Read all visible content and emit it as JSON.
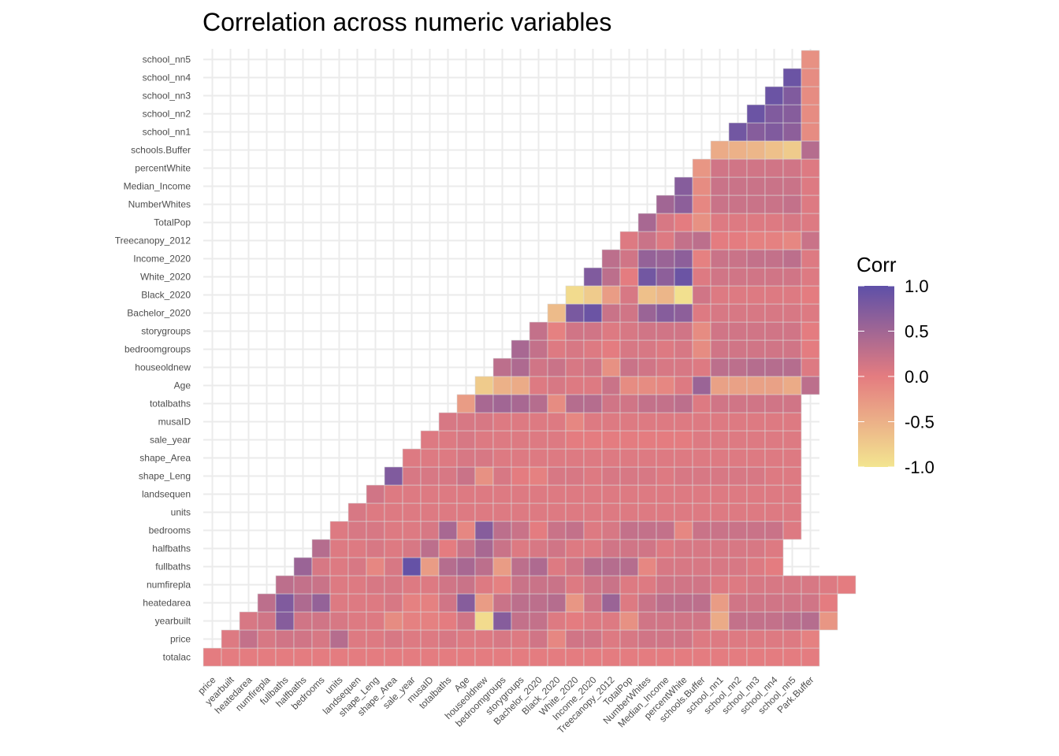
{
  "title": "Correlation across numeric variables",
  "chart_data": {
    "type": "heatmap",
    "title": "Correlation across numeric variables",
    "xlabel": "",
    "ylabel": "",
    "x_labels": [
      "price",
      "yearbuilt",
      "heatedarea",
      "numfirepla",
      "fullbaths",
      "halfbaths",
      "bedrooms",
      "units",
      "landsequen",
      "shape_Leng",
      "shape_Area",
      "sale_year",
      "musaID",
      "totalbaths",
      "Age",
      "houseoldnew",
      "bedroomgroups",
      "storygroups",
      "Bachelor_2020",
      "Black_2020",
      "White_2020",
      "Income_2020",
      "Treecanopy_2012",
      "TotalPop",
      "NumberWhites",
      "Median_Income",
      "percentWhite",
      "schools.Buffer",
      "school_nn1",
      "school_nn2",
      "school_nn3",
      "school_nn4",
      "school_nn5",
      "Park.Buffer"
    ],
    "y_labels": [
      "totalac",
      "price",
      "yearbuilt",
      "heatedarea",
      "numfirepla",
      "fullbaths",
      "halfbaths",
      "bedrooms",
      "units",
      "landsequen",
      "shape_Leng",
      "shape_Area",
      "sale_year",
      "musaID",
      "totalbaths",
      "Age",
      "houseoldnew",
      "bedroomgroups",
      "storygroups",
      "Bachelor_2020",
      "Black_2020",
      "White_2020",
      "Income_2020",
      "Treecanopy_2012",
      "TotalPop",
      "NumberWhites",
      "Median_Income",
      "percentWhite",
      "schools.Buffer",
      "school_nn1",
      "school_nn2",
      "school_nn3",
      "school_nn4",
      "school_nn5"
    ],
    "value_range": [
      -1,
      1
    ],
    "values": [
      [
        0,
        0,
        0,
        0,
        0,
        0,
        0,
        0,
        0,
        0,
        0,
        0,
        0,
        0,
        0,
        0,
        0,
        0,
        0,
        0,
        0,
        0,
        0,
        0,
        0,
        0,
        0,
        0,
        0,
        0,
        0,
        0,
        0,
        0
      ],
      [
        0.05,
        0.25,
        0.1,
        0.15,
        0.15,
        0.1,
        0.35,
        0.05,
        0.05,
        0.1,
        0.05,
        0.05,
        0.1,
        0.05,
        0.05,
        0.1,
        0.05,
        0.15,
        -0.1,
        0.15,
        0.15,
        0.05,
        0.1,
        0.15,
        0.15,
        0.15,
        0.05,
        0.05,
        0.05,
        0.05,
        0.05,
        0.05,
        -0.05
      ],
      [
        0.1,
        0.15,
        0.7,
        0.15,
        0.15,
        0.1,
        0.05,
        0.05,
        -0.15,
        -0.05,
        -0.05,
        0,
        0.15,
        -0.9,
        0.7,
        0.25,
        0.25,
        0.05,
        0,
        0.05,
        0.05,
        -0.2,
        0.15,
        0.15,
        0.15,
        0.15,
        -0.45,
        0.25,
        0.25,
        0.25,
        0.3,
        0.35,
        -0.25
      ],
      [
        0.3,
        0.75,
        0.4,
        0.6,
        0.05,
        0.05,
        0.05,
        0.1,
        -0.05,
        -0.05,
        0.15,
        0.7,
        -0.3,
        0.2,
        0.3,
        0.3,
        0.35,
        -0.25,
        0.15,
        0.55,
        0.05,
        0.2,
        0.3,
        0.3,
        0.3,
        -0.3,
        0.15,
        0.15,
        0.15,
        0.15,
        0.15,
        0
      ],
      [
        0.3,
        0.25,
        0.2,
        0.05,
        0.05,
        0.1,
        0.1,
        0.05,
        0.05,
        0.15,
        0.2,
        0.05,
        -0.05,
        0.2,
        0.2,
        0.2,
        0.05,
        0.15,
        0.2,
        0.05,
        0.05,
        0.15,
        0.15,
        0.15,
        0.05,
        0.05,
        0.1,
        0.1,
        0.1,
        0.1,
        0.05,
        0
      ],
      [
        0.55,
        0.1,
        0.05,
        0.1,
        -0.1,
        0.1,
        0.95,
        -0.3,
        0.35,
        0.45,
        0.3,
        -0.3,
        0.3,
        0.4,
        0.05,
        0.15,
        0.35,
        0.35,
        0.35,
        -0.1,
        0.1,
        0.1,
        0.1,
        0.1,
        0.1,
        0.05,
        0
      ],
      [
        0.35,
        0.05,
        0.05,
        0.1,
        0.05,
        0.1,
        0.3,
        0,
        0.2,
        0.45,
        0.2,
        0.05,
        0.1,
        0.15,
        0.05,
        0.05,
        0.15,
        0.15,
        0.15,
        0.05,
        0.1,
        0.1,
        0.1,
        0.1,
        0.1,
        0.05
      ],
      [
        0.05,
        0.1,
        0.1,
        0.05,
        0.05,
        0.1,
        0.45,
        -0.1,
        0.7,
        0.3,
        0.2,
        0,
        0.2,
        0.25,
        0.05,
        0.1,
        0.25,
        0.25,
        0.25,
        -0.1,
        0.2,
        0.2,
        0.2,
        0.2,
        0.2,
        0.05
      ],
      [
        0.1,
        0.05,
        0.05,
        0.05,
        0.05,
        0.05,
        0.05,
        0.05,
        0.05,
        0.05,
        0.05,
        0.05,
        0.05,
        0.05,
        0.05,
        0.05,
        0.05,
        0.05,
        0.05,
        0.05,
        0.05,
        0.05,
        0.05,
        0.05,
        0.05
      ],
      [
        0.15,
        0.05,
        0.05,
        0.05,
        0.05,
        0.05,
        0.05,
        0.05,
        0.05,
        0.05,
        0.05,
        0.05,
        0.05,
        0.05,
        0.05,
        0.05,
        0.05,
        0.05,
        0.05,
        0.05,
        0.05,
        0.05,
        0.05,
        0.05
      ],
      [
        0.75,
        0.1,
        0.1,
        0.1,
        0.2,
        -0.2,
        0.1,
        0,
        -0.05,
        0.1,
        0.1,
        0.05,
        0.1,
        0.1,
        0.1,
        0.05,
        0.1,
        0.1,
        0.1,
        0.1,
        0.1,
        0.05,
        0.05
      ],
      [
        0.05,
        0.05,
        0.05,
        0.1,
        0.1,
        0.05,
        0.05,
        0.05,
        0.05,
        0.05,
        0.05,
        0.05,
        0.05,
        0.05,
        0.05,
        0.05,
        0.05,
        0.05,
        0.05,
        0.05,
        0.05,
        0.05
      ],
      [
        0.05,
        0.05,
        0.1,
        0.05,
        0.05,
        0.05,
        0.05,
        0.05,
        0,
        0,
        0,
        0,
        0,
        0,
        0,
        0.05,
        0.05,
        0.05,
        0.05,
        0.05,
        0.05
      ],
      [
        0.1,
        0.1,
        0.1,
        0.05,
        0.05,
        0.05,
        0.05,
        -0.1,
        0.05,
        0.05,
        0.05,
        0.05,
        0.05,
        0.05,
        0.05,
        0.05,
        0.05,
        0.05,
        0.05,
        0.05
      ],
      [
        -0.3,
        0.45,
        0.5,
        0.45,
        0.35,
        -0.15,
        0.35,
        0.35,
        0.15,
        0.15,
        0.25,
        0.25,
        0.3,
        0.05,
        0.15,
        0.15,
        0.15,
        0.15,
        0.15
      ],
      [
        -0.75,
        -0.5,
        -0.45,
        0.05,
        0.1,
        0.05,
        0.05,
        0.2,
        -0.15,
        -0.15,
        -0.1,
        0.05,
        0.55,
        -0.35,
        -0.35,
        -0.35,
        -0.35,
        -0.45,
        0.3
      ],
      [
        0.3,
        0.4,
        0.15,
        0.2,
        0.1,
        0.15,
        -0.2,
        0.2,
        0.15,
        0.1,
        0.1,
        0.05,
        0.3,
        0.3,
        0.35,
        0.35,
        0.35,
        0.05
      ],
      [
        0.45,
        0.25,
        0.05,
        0.1,
        0.05,
        0,
        0.1,
        0.1,
        0.05,
        0.1,
        -0.15,
        0.15,
        0.15,
        0.15,
        0.15,
        0.15,
        0
      ],
      [
        0.25,
        -0.05,
        0.15,
        0.15,
        0.05,
        0.1,
        0.15,
        0.15,
        0.15,
        -0.15,
        0.15,
        0.15,
        0.15,
        0.15,
        0.15,
        0
      ],
      [
        -0.6,
        0.8,
        0.9,
        0.2,
        0.15,
        0.55,
        0.7,
        0.65,
        0.05,
        0.1,
        0.1,
        0.1,
        0.1,
        0.1,
        0.05
      ],
      [
        -0.9,
        -0.75,
        -0.3,
        0.1,
        -0.65,
        -0.55,
        -0.95,
        0.15,
        0.05,
        0.05,
        0.05,
        0.05,
        0.05,
        0
      ],
      [
        0.75,
        0.3,
        0,
        0.85,
        0.65,
        0.9,
        0.05,
        0.15,
        0.15,
        0.15,
        0.15,
        0.15,
        0.05
      ],
      [
        0.3,
        0.15,
        0.6,
        0.55,
        0.65,
        -0.05,
        0.2,
        0.2,
        0.25,
        0.25,
        0.3,
        0.05
      ],
      [
        0.05,
        0.2,
        0.05,
        0.25,
        0.3,
        0,
        0,
        -0.05,
        -0.05,
        -0.1,
        0.2
      ],
      [
        0.45,
        0.1,
        0,
        -0.2,
        0.05,
        0.05,
        0.05,
        0.05,
        0.1,
        0.05
      ],
      [
        0.5,
        0.65,
        -0.1,
        0.2,
        0.2,
        0.2,
        0.2,
        0.25,
        0.05
      ],
      [
        0.7,
        -0.15,
        0.2,
        0.2,
        0.2,
        0.2,
        0.2,
        0.05
      ],
      [
        -0.25,
        0.15,
        0.15,
        0.15,
        0.15,
        0.15,
        0.05
      ],
      [
        -0.45,
        -0.5,
        -0.55,
        -0.65,
        -0.75,
        0.35
      ],
      [
        0.85,
        0.7,
        0.75,
        0.65,
        -0.15
      ],
      [
        0.9,
        0.75,
        0.7,
        -0.15
      ],
      [
        0.9,
        0.75,
        -0.15
      ],
      [
        0.9,
        -0.15
      ],
      [
        -0.2
      ]
    ],
    "legend": {
      "title": "Corr",
      "ticks": [
        "1.0",
        "0.5",
        "0.0",
        "-0.5",
        "-1.0"
      ],
      "tick_values": [
        1,
        0.5,
        0,
        -0.5,
        -1
      ],
      "colors": {
        "high": "#5e50a8",
        "mid": "#e47c80",
        "low": "#f3e590"
      }
    },
    "grid": true,
    "legend_position": "right"
  }
}
